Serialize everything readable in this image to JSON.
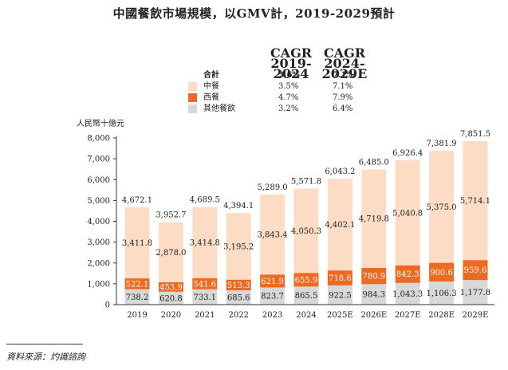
{
  "title": "中國餐飲市場規模，以GMV計，2019-2029預計",
  "unit_label": "人民幣十億元",
  "source": "資料來源：灼識諮詢",
  "cagr": {
    "headers": [
      [
        "CAGR",
        "2019-2024"
      ],
      [
        "CAGR",
        "2024-2029E"
      ]
    ],
    "rows": [
      {
        "label": "合計",
        "v1": "3.6%",
        "v2": "7.1%",
        "bold": true
      },
      {
        "label": "中餐",
        "v1": "3.5%",
        "v2": "7.1%",
        "color": "#fcdcc4"
      },
      {
        "label": "西餐",
        "v1": "4.7%",
        "v2": "7.9%",
        "color": "#ee6a22"
      },
      {
        "label": "其他餐飲",
        "v1": "3.2%",
        "v2": "6.4%",
        "color": "#d8d8d8"
      }
    ]
  },
  "chart_data": {
    "type": "bar",
    "stacked": true,
    "categories": [
      "2019",
      "2020",
      "2021",
      "2022",
      "2023",
      "2024",
      "2025E",
      "2026E",
      "2027E",
      "2028E",
      "2029E"
    ],
    "ylim": [
      0,
      8000
    ],
    "yticks": [
      "0",
      "1,000",
      "2,000",
      "3,000",
      "4,000",
      "5,000",
      "6,000",
      "7,000",
      "8,000"
    ],
    "series": [
      {
        "name": "其他餐飲",
        "color": "#d8d8d8",
        "values": [
          738.2,
          620.8,
          733.1,
          685.6,
          823.7,
          865.5,
          922.5,
          984.3,
          1043.3,
          1106.3,
          1177.8
        ],
        "labels": [
          "738.2",
          "620.8",
          "733.1",
          "685.6",
          "823.7",
          "865.5",
          "922.5",
          "984.3",
          "1,043.3",
          "1,106.3",
          "1,177.8"
        ]
      },
      {
        "name": "西餐",
        "color": "#ee6a22",
        "values": [
          522.1,
          453.9,
          541.6,
          513.3,
          621.9,
          655.9,
          718.6,
          780.9,
          842.3,
          900.6,
          959.6
        ],
        "labels": [
          "522.1",
          "453.9",
          "541.6",
          "513.3",
          "621.9",
          "655.9",
          "718.6",
          "780.9",
          "842.3",
          "900.6",
          "959.6"
        ]
      },
      {
        "name": "中餐",
        "color": "#fcdcc4",
        "values": [
          3411.8,
          2878.0,
          3414.8,
          3195.2,
          3843.4,
          4050.3,
          4402.1,
          4719.8,
          5040.8,
          5375.0,
          5714.1
        ],
        "labels": [
          "3,411.8",
          "2,878.0",
          "3,414.8",
          "3,195.2",
          "3,843.4",
          "4,050.3",
          "4,402.1",
          "4,719.8",
          "5,040.8",
          "5,375.0",
          "5,714.1"
        ]
      }
    ],
    "totals": [
      4672.1,
      3952.7,
      4689.5,
      4394.1,
      5289.0,
      5571.8,
      6043.2,
      6485.0,
      6926.4,
      7381.9,
      7851.5
    ],
    "total_labels": [
      "4,672.1",
      "3,952.7",
      "4,689.5",
      "4,394.1",
      "5,289.0",
      "5,571.8",
      "6,043.2",
      "6,485.0",
      "6,926.4",
      "7,381.9",
      "7,851.5"
    ]
  }
}
